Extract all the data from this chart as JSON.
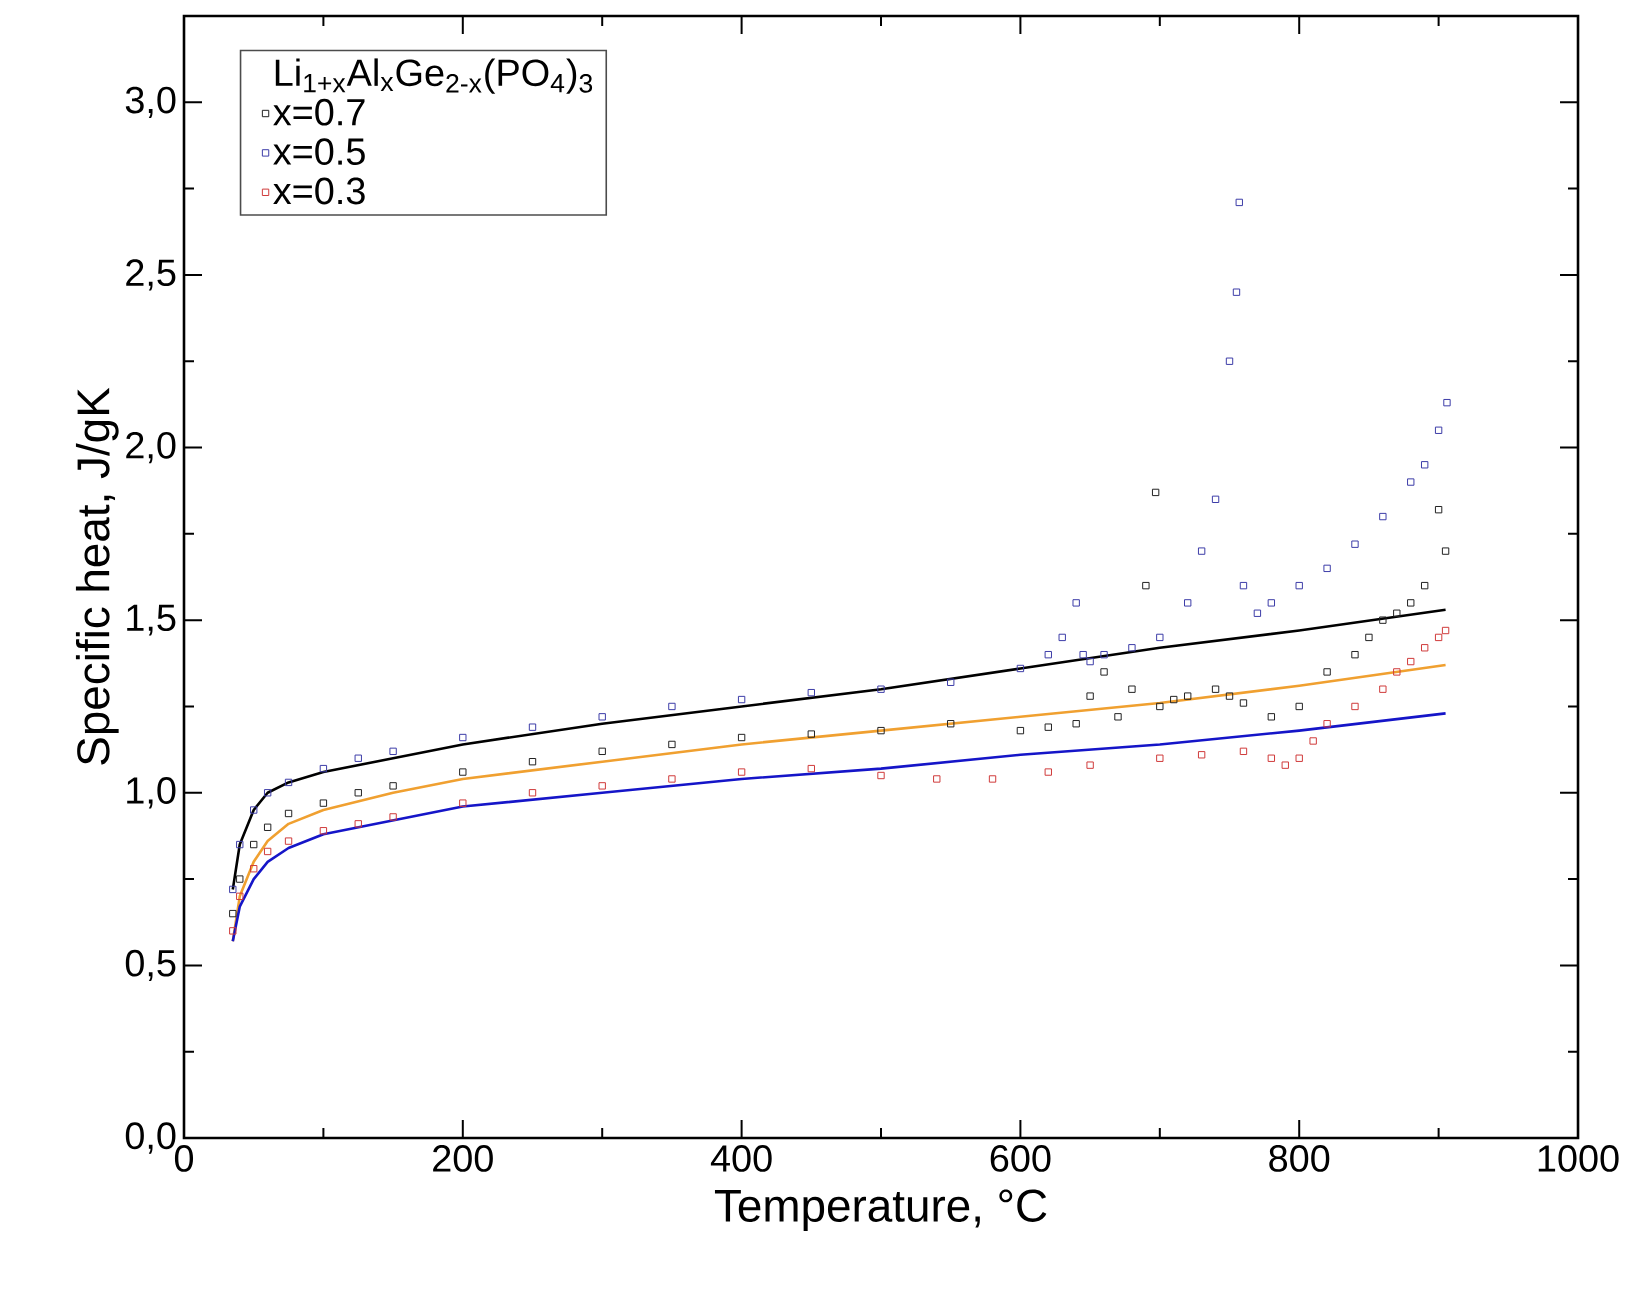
{
  "chart_data": {
    "type": "scatter",
    "xlabel": "Temperature, °C",
    "ylabel": "Specific heat, J/gK",
    "legend_title": "Li$_{1+x}$Al$_{x}$Ge$_{2-x}$(PO$_{4}$)$_{3}$",
    "legend": "top left",
    "marker": "square",
    "grid": false,
    "xlim": [
      0,
      1000
    ],
    "xticks": [
      0,
      200,
      400,
      600,
      800,
      1000
    ],
    "ylim": [
      0,
      3.25
    ],
    "yticks": [
      {
        "value": 0,
        "label": "0,0"
      },
      {
        "value": 0.5,
        "label": "0,5"
      },
      {
        "value": 1,
        "label": "1,0"
      },
      {
        "value": 1.5,
        "label": "1,5"
      },
      {
        "value": 2,
        "label": "2,0"
      },
      {
        "value": 2.5,
        "label": "2,5"
      },
      {
        "value": 3,
        "label": "3,0"
      }
    ],
    "series": [
      {
        "name": "x=0.7",
        "color": "#222222",
        "x": [
          35,
          40,
          50,
          60,
          75,
          100,
          125,
          150,
          200,
          250,
          300,
          350,
          400,
          450,
          500,
          550,
          600,
          620,
          640,
          650,
          660,
          670,
          680,
          690,
          697,
          700,
          710,
          720,
          740,
          750,
          760,
          780,
          800,
          820,
          840,
          850,
          860,
          870,
          880,
          890,
          900,
          905
        ],
        "values": [
          0.65,
          0.75,
          0.85,
          0.9,
          0.94,
          0.97,
          1.0,
          1.02,
          1.06,
          1.09,
          1.12,
          1.14,
          1.16,
          1.17,
          1.18,
          1.2,
          1.18,
          1.19,
          1.2,
          1.28,
          1.35,
          1.22,
          1.3,
          1.6,
          1.87,
          1.25,
          1.27,
          1.28,
          1.3,
          1.28,
          1.26,
          1.22,
          1.25,
          1.35,
          1.4,
          1.45,
          1.5,
          1.52,
          1.55,
          1.6,
          1.82,
          1.7
        ]
      },
      {
        "name": "x=0.5",
        "color": "#3c3ca8",
        "x": [
          35,
          40,
          50,
          60,
          75,
          100,
          125,
          150,
          200,
          250,
          300,
          350,
          400,
          450,
          500,
          550,
          600,
          620,
          630,
          640,
          645,
          650,
          660,
          680,
          700,
          720,
          730,
          740,
          750,
          755,
          757,
          760,
          770,
          780,
          800,
          820,
          840,
          860,
          880,
          890,
          900,
          906
        ],
        "values": [
          0.72,
          0.85,
          0.95,
          1.0,
          1.03,
          1.07,
          1.1,
          1.12,
          1.16,
          1.19,
          1.22,
          1.25,
          1.27,
          1.29,
          1.3,
          1.32,
          1.36,
          1.4,
          1.45,
          1.55,
          1.4,
          1.38,
          1.4,
          1.42,
          1.45,
          1.55,
          1.7,
          1.85,
          2.25,
          2.45,
          2.71,
          1.6,
          1.52,
          1.55,
          1.6,
          1.65,
          1.72,
          1.8,
          1.9,
          1.95,
          2.05,
          2.13
        ]
      },
      {
        "name": "x=0.3",
        "color": "#d03a3a",
        "x": [
          35,
          40,
          50,
          60,
          75,
          100,
          125,
          150,
          200,
          250,
          300,
          350,
          400,
          450,
          500,
          540,
          580,
          620,
          650,
          700,
          730,
          760,
          780,
          790,
          800,
          810,
          820,
          840,
          860,
          870,
          880,
          890,
          900,
          905
        ],
        "values": [
          0.6,
          0.7,
          0.78,
          0.83,
          0.86,
          0.89,
          0.91,
          0.93,
          0.97,
          1.0,
          1.02,
          1.04,
          1.06,
          1.07,
          1.05,
          1.04,
          1.04,
          1.06,
          1.08,
          1.1,
          1.11,
          1.12,
          1.1,
          1.08,
          1.1,
          1.15,
          1.2,
          1.25,
          1.3,
          1.35,
          1.38,
          1.42,
          1.45,
          1.47
        ]
      },
      {
        "type": "line",
        "marker": "none",
        "color": "#000000",
        "x": [
          35,
          40,
          50,
          60,
          75,
          100,
          150,
          200,
          300,
          400,
          500,
          600,
          700,
          800,
          905
        ],
        "values": [
          0.72,
          0.85,
          0.95,
          1.0,
          1.03,
          1.06,
          1.1,
          1.14,
          1.2,
          1.25,
          1.3,
          1.36,
          1.42,
          1.47,
          1.53
        ]
      },
      {
        "type": "line",
        "marker": "none",
        "color": "#f0a030",
        "x": [
          35,
          40,
          50,
          60,
          75,
          100,
          150,
          200,
          300,
          400,
          500,
          600,
          700,
          800,
          905
        ],
        "values": [
          0.57,
          0.7,
          0.8,
          0.86,
          0.91,
          0.95,
          1.0,
          1.04,
          1.09,
          1.14,
          1.18,
          1.22,
          1.26,
          1.31,
          1.37
        ]
      },
      {
        "type": "line",
        "marker": "none",
        "color": "#1515c8",
        "x": [
          35,
          40,
          50,
          60,
          75,
          100,
          150,
          200,
          300,
          400,
          500,
          600,
          700,
          800,
          905
        ],
        "values": [
          0.57,
          0.67,
          0.75,
          0.8,
          0.84,
          0.88,
          0.92,
          0.96,
          1.0,
          1.04,
          1.07,
          1.11,
          1.14,
          1.18,
          1.23
        ]
      }
    ]
  }
}
